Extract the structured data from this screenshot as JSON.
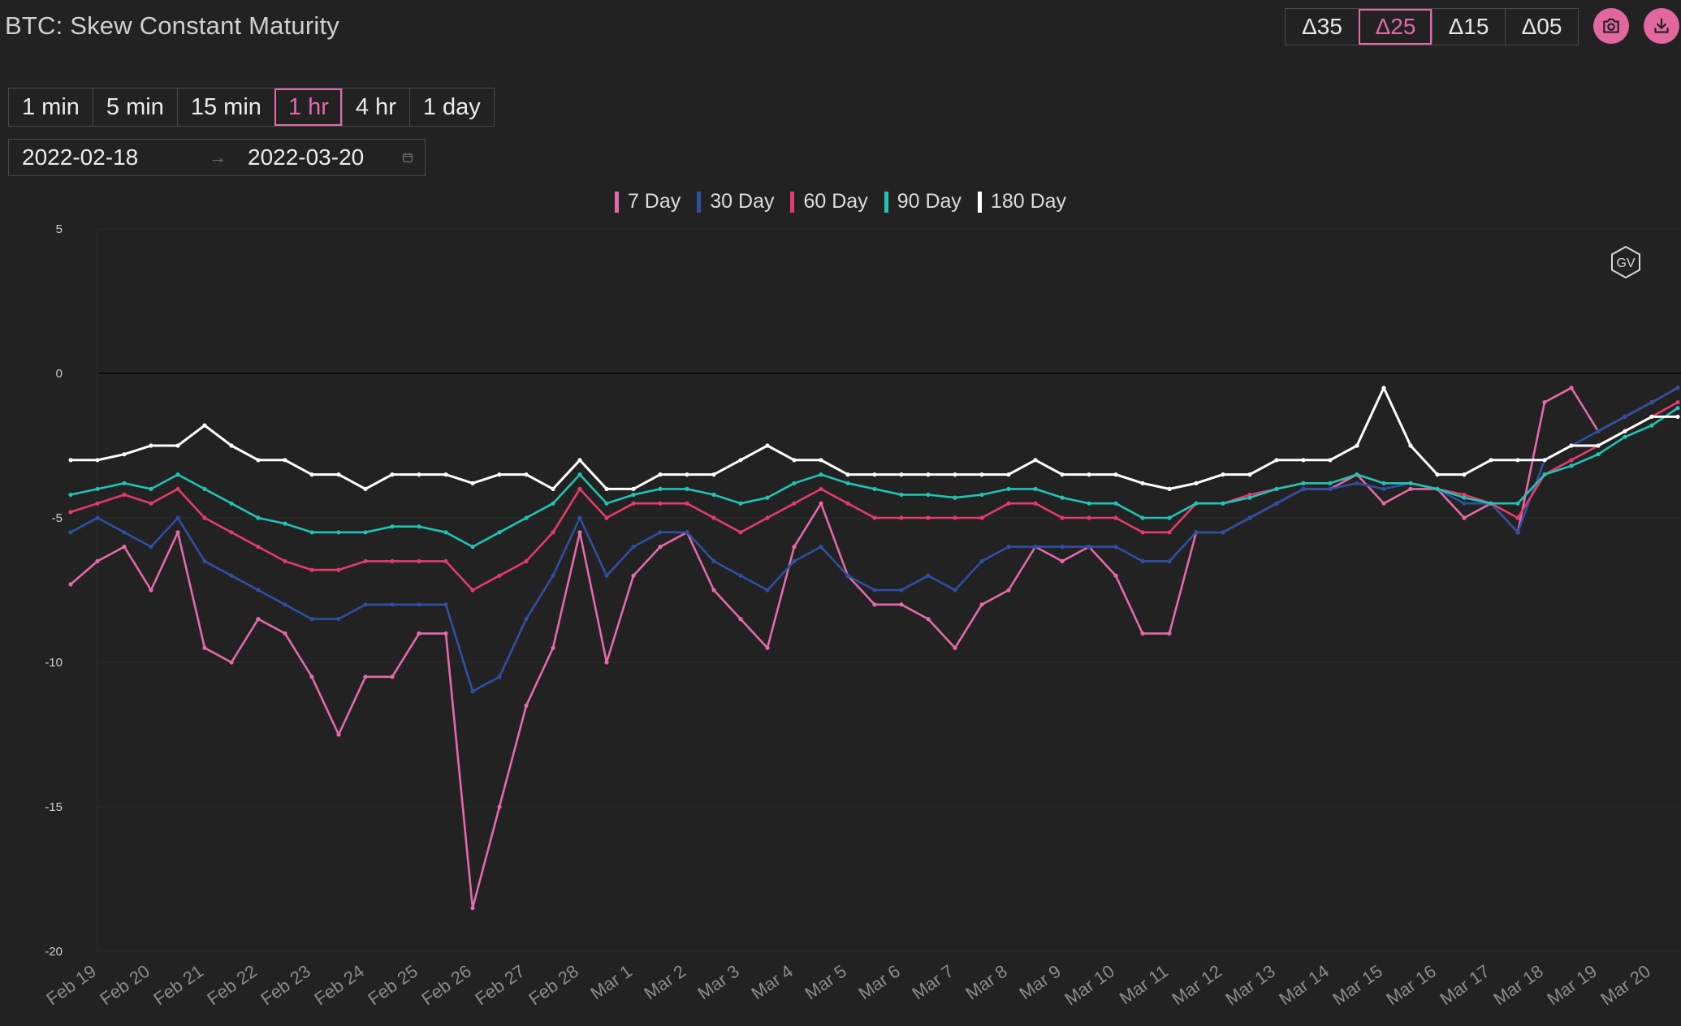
{
  "title": "BTC: Skew Constant Maturity",
  "delta_options": [
    {
      "label": "Δ35",
      "active": false
    },
    {
      "label": "Δ25",
      "active": true
    },
    {
      "label": "Δ15",
      "active": false
    },
    {
      "label": "Δ05",
      "active": false
    }
  ],
  "toolbar_icons": [
    "camera-icon",
    "download-icon"
  ],
  "resolutions": [
    {
      "label": "1 min",
      "active": false
    },
    {
      "label": "5 min",
      "active": false
    },
    {
      "label": "15 min",
      "active": false
    },
    {
      "label": "1 hr",
      "active": true
    },
    {
      "label": "4 hr",
      "active": false
    },
    {
      "label": "1 day",
      "active": false
    }
  ],
  "date_range": {
    "start": "2022-02-18",
    "end": "2022-03-20",
    "separator": "→"
  },
  "colors": {
    "accent": "#e46aa8",
    "background": "#222222"
  },
  "watermark": "GV",
  "chart_data": {
    "type": "line",
    "title": "",
    "xlabel": "",
    "ylabel": "",
    "ylim": [
      -20,
      5
    ],
    "yticks": [
      5,
      0,
      -5,
      -10,
      -15,
      -20
    ],
    "xticks": [
      "Feb 19",
      "Feb 20",
      "Feb 21",
      "Feb 22",
      "Feb 23",
      "Feb 24",
      "Feb 25",
      "Feb 26",
      "Feb 27",
      "Feb 28",
      "Mar 1",
      "Mar 2",
      "Mar 3",
      "Mar 4",
      "Mar 5",
      "Mar 6",
      "Mar 7",
      "Mar 8",
      "Mar 9",
      "Mar 10",
      "Mar 11",
      "Mar 12",
      "Mar 13",
      "Mar 14",
      "Mar 15",
      "Mar 16",
      "Mar 17",
      "Mar 18",
      "Mar 19",
      "Mar 20"
    ],
    "x": [
      "Feb 18",
      "Feb 19",
      "Feb 19",
      "Feb 20",
      "Feb 20",
      "Feb 21",
      "Feb 21",
      "Feb 22",
      "Feb 22",
      "Feb 23",
      "Feb 23",
      "Feb 24",
      "Feb 24",
      "Feb 25",
      "Feb 25",
      "Feb 26",
      "Feb 26",
      "Feb 27",
      "Feb 27",
      "Feb 28",
      "Feb 28",
      "Mar 1",
      "Mar 1",
      "Mar 2",
      "Mar 2",
      "Mar 3",
      "Mar 3",
      "Mar 4",
      "Mar 4",
      "Mar 5",
      "Mar 5",
      "Mar 6",
      "Mar 6",
      "Mar 7",
      "Mar 7",
      "Mar 8",
      "Mar 8",
      "Mar 9",
      "Mar 9",
      "Mar 10",
      "Mar 10",
      "Mar 11",
      "Mar 11",
      "Mar 12",
      "Mar 12",
      "Mar 13",
      "Mar 13",
      "Mar 14",
      "Mar 14",
      "Mar 15",
      "Mar 15",
      "Mar 16",
      "Mar 16",
      "Mar 17",
      "Mar 17",
      "Mar 18",
      "Mar 18",
      "Mar 19",
      "Mar 19",
      "Mar 20",
      "Mar 20"
    ],
    "series": [
      {
        "name": "7 Day",
        "color": "#e46aa8",
        "values": [
          -7.3,
          -6.5,
          -6.0,
          -7.5,
          -5.5,
          -9.5,
          -10.0,
          -8.5,
          -9.0,
          -10.5,
          -12.5,
          -10.5,
          -10.5,
          -9.0,
          -9.0,
          -18.5,
          -15.0,
          -11.5,
          -9.5,
          -5.5,
          -10.0,
          -7.0,
          -6.0,
          -5.5,
          -7.5,
          -8.5,
          -9.5,
          -6.0,
          -4.5,
          -7.0,
          -8.0,
          -8.0,
          -8.5,
          -9.5,
          -8.0,
          -7.5,
          -6.0,
          -6.5,
          -6.0,
          -7.0,
          -9.0,
          -9.0,
          -5.5,
          -5.5,
          -5.0,
          -4.5,
          -4.0,
          -4.0,
          -3.5,
          -4.5,
          -4.0,
          -4.0,
          -5.0,
          -4.5,
          -5.5,
          -1.0,
          -0.5,
          -2.0,
          -1.5,
          -1.0,
          -0.5
        ]
      },
      {
        "name": "30 Day",
        "color": "#2f4fa2",
        "values": [
          -5.5,
          -5.0,
          -5.5,
          -6.0,
          -5.0,
          -6.5,
          -7.0,
          -7.5,
          -8.0,
          -8.5,
          -8.5,
          -8.0,
          -8.0,
          -8.0,
          -8.0,
          -11.0,
          -10.5,
          -8.5,
          -7.0,
          -5.0,
          -7.0,
          -6.0,
          -5.5,
          -5.5,
          -6.5,
          -7.0,
          -7.5,
          -6.5,
          -6.0,
          -7.0,
          -7.5,
          -7.5,
          -7.0,
          -7.5,
          -6.5,
          -6.0,
          -6.0,
          -6.0,
          -6.0,
          -6.0,
          -6.5,
          -6.5,
          -5.5,
          -5.5,
          -5.0,
          -4.5,
          -4.0,
          -4.0,
          -3.8,
          -4.0,
          -3.8,
          -4.0,
          -4.5,
          -4.5,
          -5.5,
          -3.0,
          -2.5,
          -2.0,
          -1.5,
          -1.0,
          -0.5
        ]
      },
      {
        "name": "60 Day",
        "color": "#e33b6d",
        "values": [
          -4.8,
          -4.5,
          -4.2,
          -4.5,
          -4.0,
          -5.0,
          -5.5,
          -6.0,
          -6.5,
          -6.8,
          -6.8,
          -6.5,
          -6.5,
          -6.5,
          -6.5,
          -7.5,
          -7.0,
          -6.5,
          -5.5,
          -4.0,
          -5.0,
          -4.5,
          -4.5,
          -4.5,
          -5.0,
          -5.5,
          -5.0,
          -4.5,
          -4.0,
          -4.5,
          -5.0,
          -5.0,
          -5.0,
          -5.0,
          -5.0,
          -4.5,
          -4.5,
          -5.0,
          -5.0,
          -5.0,
          -5.5,
          -5.5,
          -4.5,
          -4.5,
          -4.2,
          -4.0,
          -3.8,
          -3.8,
          -3.5,
          -3.8,
          -3.8,
          -4.0,
          -4.2,
          -4.5,
          -5.0,
          -3.5,
          -3.0,
          -2.5,
          -2.0,
          -1.5,
          -1.0
        ]
      },
      {
        "name": "90 Day",
        "color": "#1fc4b4",
        "values": [
          -4.2,
          -4.0,
          -3.8,
          -4.0,
          -3.5,
          -4.0,
          -4.5,
          -5.0,
          -5.2,
          -5.5,
          -5.5,
          -5.5,
          -5.3,
          -5.3,
          -5.5,
          -6.0,
          -5.5,
          -5.0,
          -4.5,
          -3.5,
          -4.5,
          -4.2,
          -4.0,
          -4.0,
          -4.2,
          -4.5,
          -4.3,
          -3.8,
          -3.5,
          -3.8,
          -4.0,
          -4.2,
          -4.2,
          -4.3,
          -4.2,
          -4.0,
          -4.0,
          -4.3,
          -4.5,
          -4.5,
          -5.0,
          -5.0,
          -4.5,
          -4.5,
          -4.3,
          -4.0,
          -3.8,
          -3.8,
          -3.5,
          -3.8,
          -3.8,
          -4.0,
          -4.3,
          -4.5,
          -4.5,
          -3.5,
          -3.2,
          -2.8,
          -2.2,
          -1.8,
          -1.2
        ]
      },
      {
        "name": "180 Day",
        "color": "#ffffff",
        "values": [
          -3.0,
          -3.0,
          -2.8,
          -2.5,
          -2.5,
          -1.8,
          -2.5,
          -3.0,
          -3.0,
          -3.5,
          -3.5,
          -4.0,
          -3.5,
          -3.5,
          -3.5,
          -3.8,
          -3.5,
          -3.5,
          -4.0,
          -3.0,
          -4.0,
          -4.0,
          -3.5,
          -3.5,
          -3.5,
          -3.0,
          -2.5,
          -3.0,
          -3.0,
          -3.5,
          -3.5,
          -3.5,
          -3.5,
          -3.5,
          -3.5,
          -3.5,
          -3.0,
          -3.5,
          -3.5,
          -3.5,
          -3.8,
          -4.0,
          -3.8,
          -3.5,
          -3.5,
          -3.0,
          -3.0,
          -3.0,
          -2.5,
          -0.5,
          -2.5,
          -3.5,
          -3.5,
          -3.0,
          -3.0,
          -3.0,
          -2.5,
          -2.5,
          -2.0,
          -1.5,
          -1.5
        ]
      }
    ],
    "legend_position": "top-center",
    "grid": true
  }
}
